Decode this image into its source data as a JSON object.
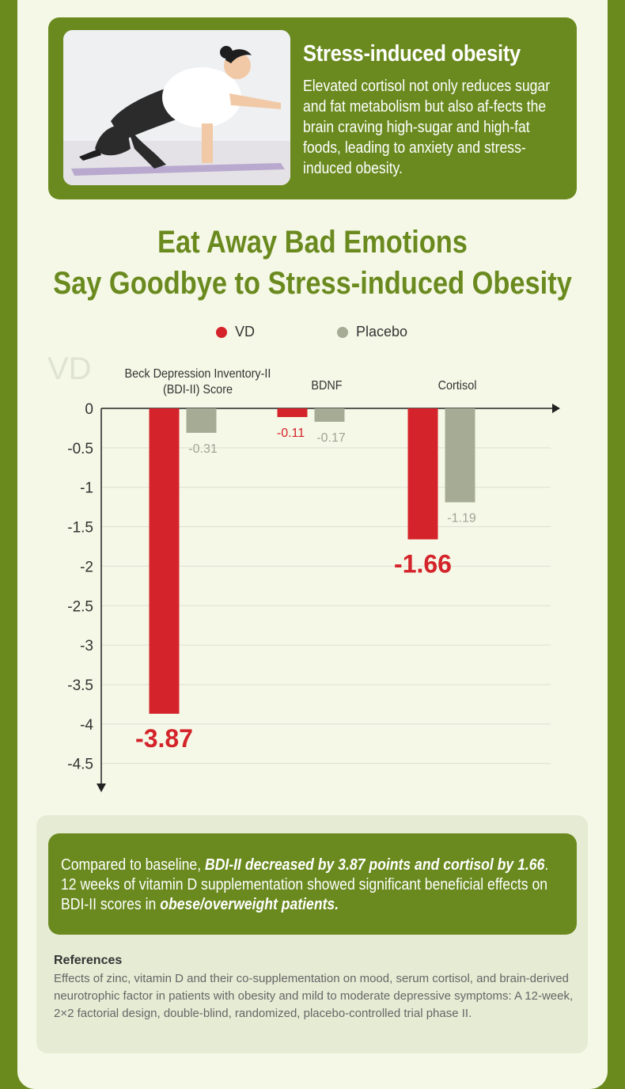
{
  "colors": {
    "brand_green": "#6a8a1f",
    "vd_red": "#d4232a",
    "placebo_gray": "#a5ab95"
  },
  "intro": {
    "image_icon": "woman-exercise-photo",
    "title": "Stress-induced obesity",
    "text": "Elevated cortisol not only reduces sugar and fat metabolism but also af-fects the brain craving high-sugar and high-fat foods, leading to anxiety and stress-induced obesity."
  },
  "headline": {
    "line1": "Eat Away Bad Emotions",
    "line2": "Say Goodbye to Stress-induced Obesity"
  },
  "watermark": "VD",
  "chart_data": {
    "type": "bar",
    "categories": [
      "Beck Depression Inventory-II (BDI-II) Score",
      "BDNF",
      "Cortisol"
    ],
    "series": [
      {
        "name": "VD",
        "values": [
          -3.87,
          -0.11,
          -1.66
        ],
        "color": "#d4232a"
      },
      {
        "name": "Placebo",
        "values": [
          -0.31,
          -0.17,
          -1.19
        ],
        "color": "#a5ab95"
      }
    ],
    "value_labels": {
      "VD": [
        "-3.87",
        "-0.11",
        "-1.66"
      ],
      "Placebo": [
        "-0.31",
        "-0.17",
        "-1.19"
      ]
    },
    "y_ticks": [
      "0",
      "-0.5",
      "-1",
      "-1.5",
      "-2",
      "-2.5",
      "-3",
      "-3.5",
      "-4",
      "-4.5"
    ],
    "ylim": [
      -4.5,
      0
    ],
    "grid": true,
    "legend_position": "top-center"
  },
  "summary": {
    "prefix": "Compared to baseline, ",
    "bold1": "BDI-II decreased by 3.87 points and cortisol by 1.66",
    "mid": ". 12 weeks of vitamin D supplementation showed significant beneficial effects on BDI-II scores in ",
    "bold2": "obese/overweight patients."
  },
  "references": {
    "title": "References",
    "text": "Effects of zinc, vitamin D and their co-supplementation on mood, serum cortisol, and brain-derived neurotrophic factor in patients with obesity and mild to moderate depressive symptoms: A 12-week, 2×2 factorial design, double-blind, randomized, placebo-controlled trial phase II."
  }
}
